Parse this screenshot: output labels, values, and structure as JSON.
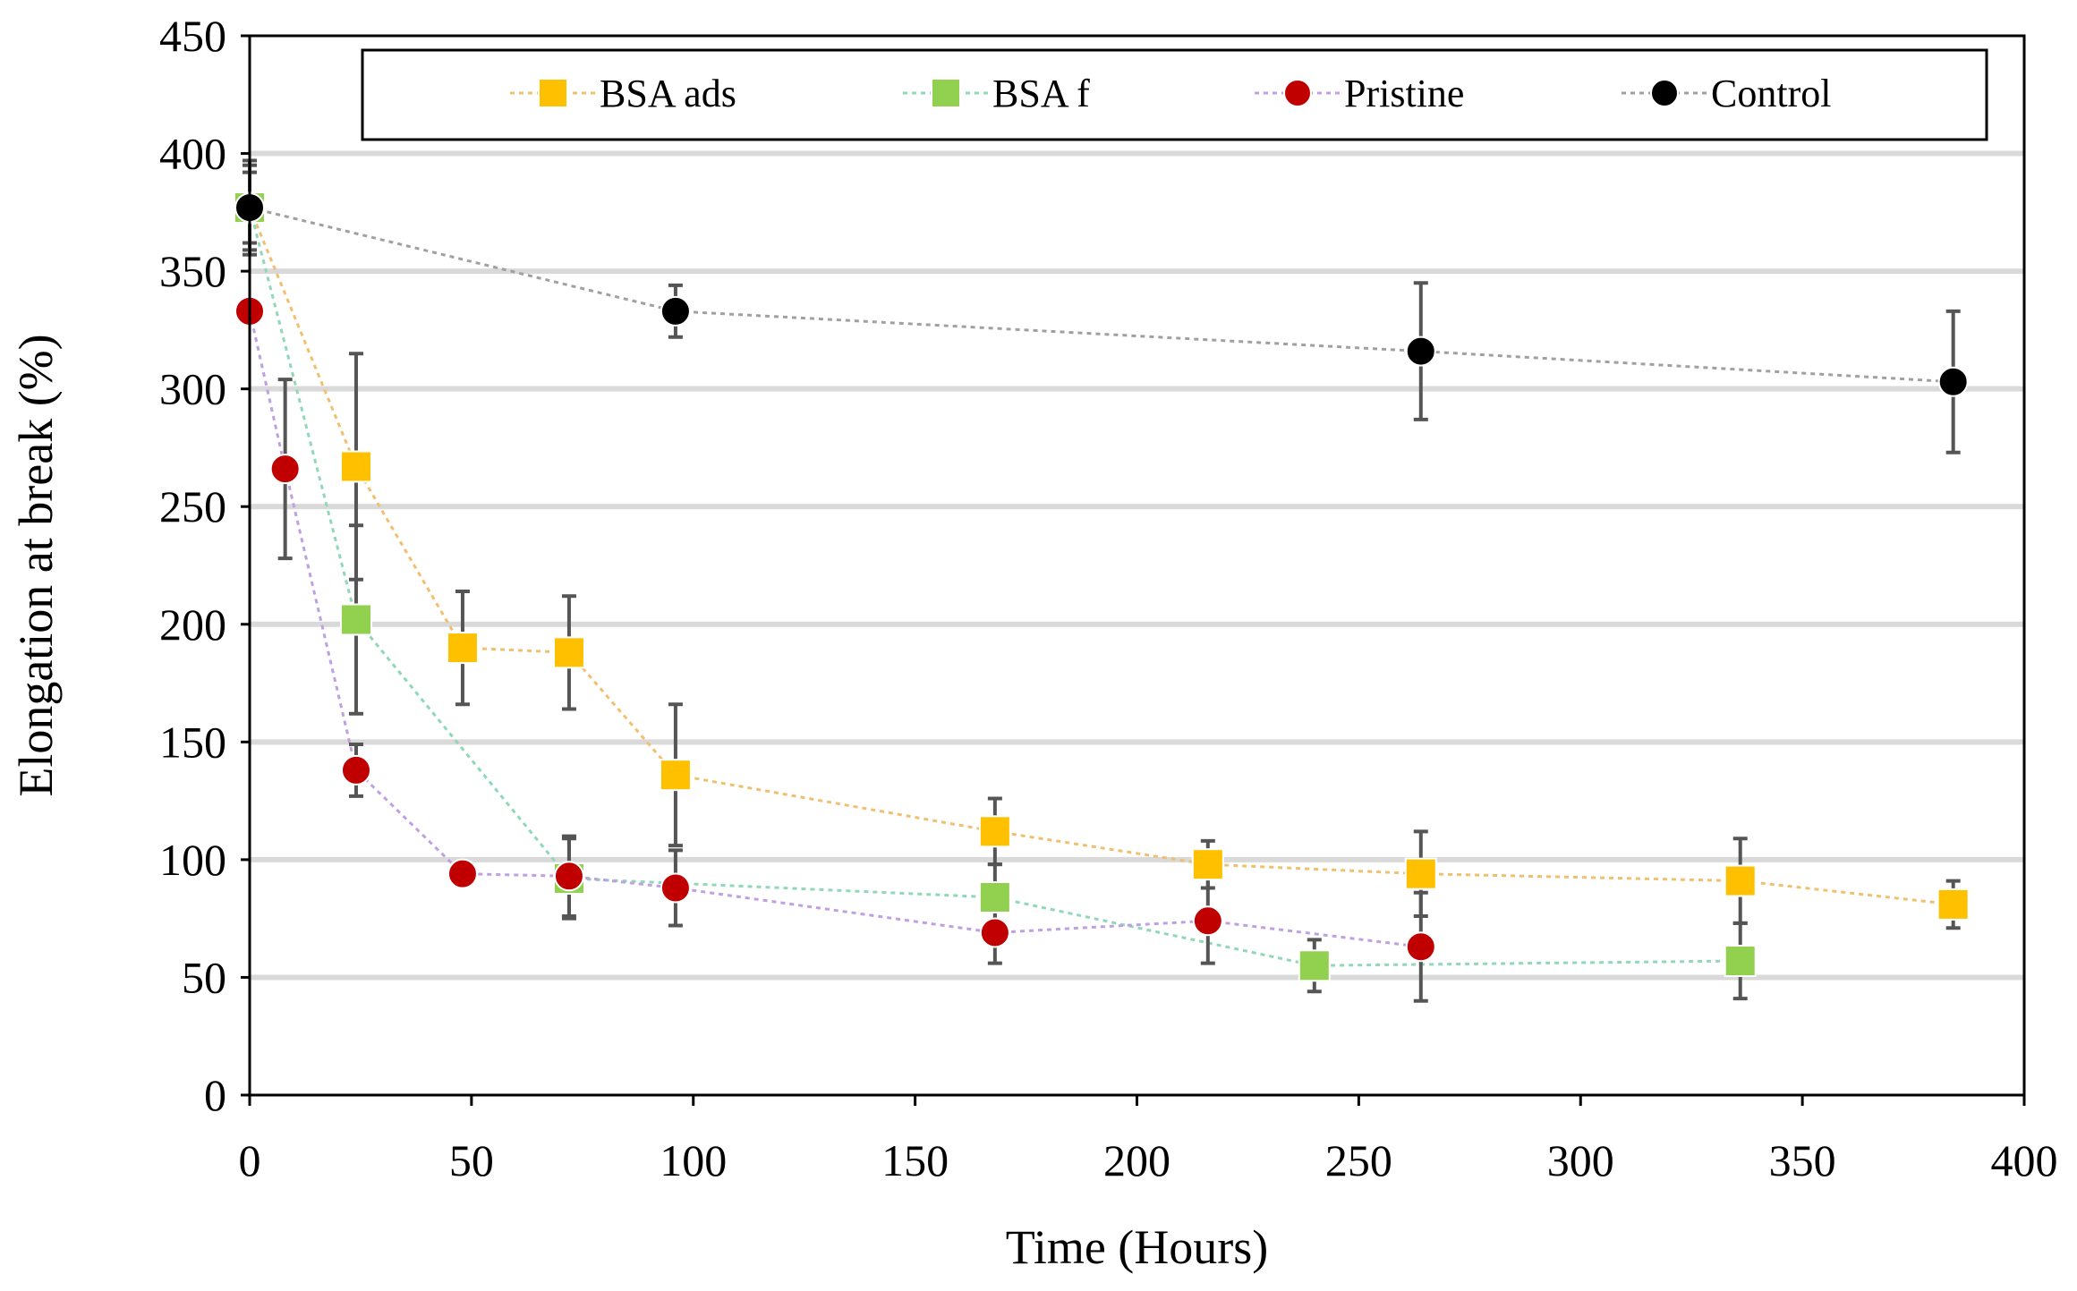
{
  "chart_data": {
    "type": "scatter",
    "title": "",
    "xlabel": "Time (Hours)",
    "ylabel": "Elongation at break (%)",
    "xlim": [
      0,
      400
    ],
    "ylim": [
      0,
      450
    ],
    "xticks": [
      0,
      50,
      100,
      150,
      200,
      250,
      300,
      350,
      400
    ],
    "yticks": [
      0,
      50,
      100,
      150,
      200,
      250,
      300,
      350,
      400,
      450
    ],
    "grid": "horizontal",
    "legend_position": "top",
    "series": [
      {
        "name": "BSA ads",
        "marker": "square",
        "color": "#FFC000",
        "line_color": "#F0C070",
        "x": [
          0,
          24,
          48,
          72,
          96,
          168,
          216,
          264,
          336,
          384
        ],
        "y": [
          377,
          267,
          190,
          188,
          136,
          112,
          98,
          94,
          91,
          81
        ],
        "err": [
          18,
          48,
          24,
          24,
          30,
          14,
          10,
          18,
          18,
          10
        ]
      },
      {
        "name": "BSA f",
        "marker": "square",
        "color": "#92D050",
        "line_color": "#8FD8B8",
        "x": [
          0,
          24,
          72,
          168,
          240,
          336
        ],
        "y": [
          377,
          202,
          92,
          84,
          55,
          57
        ],
        "err": [
          15,
          40,
          17,
          14,
          11,
          16
        ]
      },
      {
        "name": "Pristine",
        "marker": "circle",
        "color": "#C00000",
        "line_color": "#C0A0E0",
        "x": [
          0,
          8,
          24,
          48,
          72,
          96,
          168,
          216,
          264
        ],
        "y": [
          333,
          266,
          138,
          94,
          93,
          88,
          69,
          74,
          63
        ],
        "err": [
          0,
          38,
          11,
          5,
          17,
          16,
          13,
          18,
          23
        ]
      },
      {
        "name": "Control",
        "marker": "circle",
        "color": "#000000",
        "line_color": "#A0A0A0",
        "x": [
          0,
          96,
          264,
          384
        ],
        "y": [
          377,
          333,
          316,
          303
        ],
        "err": [
          20,
          11,
          29,
          30
        ]
      }
    ]
  }
}
